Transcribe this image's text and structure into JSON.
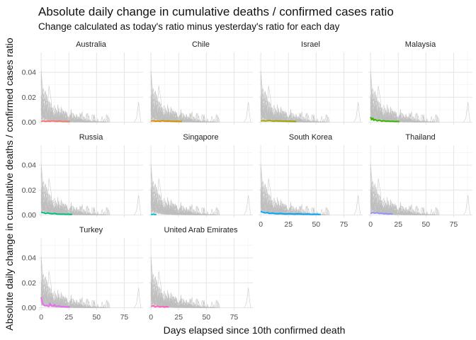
{
  "chart_data": {
    "type": "line",
    "title": "Absolute daily change in cumulative deaths / confirmed cases ratio",
    "subtitle": "Change calculated as today's ratio minus yesterday's ratio for each day",
    "xlabel": "Days elapsed since 10th confirmed death",
    "ylabel": "Absolute daily change in cumulative deaths / confirmed cases ratio",
    "xlim": [
      -2,
      92
    ],
    "ylim": [
      -0.002,
      0.056
    ],
    "x_ticks": [
      0,
      25,
      50,
      75
    ],
    "x_tick_labels": [
      "0",
      "25",
      "50",
      "75"
    ],
    "y_ticks": [
      0.0,
      0.02,
      0.04
    ],
    "y_tick_labels": [
      "0.00",
      "0.02",
      "0.04"
    ],
    "grid": true,
    "legend": "none",
    "background_series_color": "#bebebe",
    "background_series_description_hidden": true,
    "panels": [
      {
        "name": "Australia",
        "color": "#F8766D",
        "x": [
          0,
          2,
          4,
          6,
          8,
          10,
          12,
          14,
          16,
          18,
          20,
          22,
          24,
          26
        ],
        "y": [
          0.0008,
          0.001,
          0.0006,
          0.0009,
          0.0007,
          0.0011,
          0.0008,
          0.0006,
          0.0009,
          0.0007,
          0.0005,
          0.0006,
          0.0004,
          0.0005
        ]
      },
      {
        "name": "Chile",
        "color": "#D89000",
        "x": [
          0,
          2,
          4,
          6,
          8,
          10,
          12,
          14,
          16,
          18,
          20,
          22,
          24,
          26,
          28
        ],
        "y": [
          0.0009,
          0.0011,
          0.0008,
          0.001,
          0.0007,
          0.0012,
          0.0009,
          0.0008,
          0.001,
          0.0007,
          0.0008,
          0.0006,
          0.0007,
          0.0005,
          0.0006
        ]
      },
      {
        "name": "Israel",
        "color": "#A3A500",
        "x": [
          0,
          2,
          4,
          6,
          8,
          10,
          12,
          14,
          16,
          18,
          20,
          22,
          24,
          26,
          28,
          30,
          32
        ],
        "y": [
          0.001,
          0.0012,
          0.0009,
          0.0011,
          0.0013,
          0.001,
          0.0008,
          0.0011,
          0.0009,
          0.001,
          0.0008,
          0.0009,
          0.0007,
          0.0008,
          0.0006,
          0.0007,
          0.0005
        ]
      },
      {
        "name": "Malaysia",
        "color": "#39B600",
        "x": [
          0,
          1,
          2,
          3,
          4,
          6,
          8,
          10,
          12,
          14,
          16,
          18,
          20,
          22,
          24,
          26
        ],
        "y": [
          0.0042,
          0.002,
          0.0032,
          0.0014,
          0.0022,
          0.001,
          0.0016,
          0.0008,
          0.0012,
          0.0007,
          0.0009,
          0.0006,
          0.0008,
          0.0005,
          0.0006,
          0.0004
        ]
      },
      {
        "name": "Russia",
        "color": "#00BF7D",
        "x": [
          0,
          2,
          4,
          6,
          8,
          10,
          12,
          14,
          16,
          18,
          20,
          22,
          24,
          26,
          28
        ],
        "y": [
          0.0022,
          0.0018,
          0.0012,
          0.0016,
          0.0011,
          0.0009,
          0.0012,
          0.0008,
          0.0007,
          0.0006,
          0.0007,
          0.0005,
          0.0006,
          0.0004,
          0.0005
        ]
      },
      {
        "name": "Singapore",
        "color": "#00BFC4",
        "x": [
          0,
          1,
          2,
          3,
          4,
          5
        ],
        "y": [
          0.0006,
          0.0004,
          0.0007,
          0.0005,
          0.0004,
          0.0005
        ]
      },
      {
        "name": "South Korea",
        "color": "#00A9FF",
        "x": [
          0,
          2,
          4,
          6,
          8,
          10,
          14,
          18,
          22,
          26,
          30,
          34,
          38,
          42,
          46,
          50,
          54
        ],
        "y": [
          0.0028,
          0.0022,
          0.0016,
          0.0019,
          0.0012,
          0.0015,
          0.001,
          0.0012,
          0.0008,
          0.001,
          0.0007,
          0.0009,
          0.0006,
          0.0008,
          0.0005,
          0.0006,
          0.0004
        ]
      },
      {
        "name": "Thailand",
        "color": "#9590FF",
        "x": [
          0,
          2,
          4,
          6,
          8,
          10,
          12,
          14,
          16,
          18,
          20
        ],
        "y": [
          0.0012,
          0.002,
          0.0014,
          0.0018,
          0.0011,
          0.0015,
          0.0009,
          0.0012,
          0.0008,
          0.001,
          0.0007
        ]
      },
      {
        "name": "Turkey",
        "color": "#E76BF3",
        "x": [
          0,
          1,
          2,
          3,
          4,
          5,
          6,
          7,
          8,
          9,
          10,
          11,
          12,
          13,
          14,
          16,
          18,
          20,
          22,
          24,
          26
        ],
        "y": [
          0.0085,
          0.004,
          0.0025,
          0.0018,
          0.0015,
          0.002,
          0.0012,
          0.001,
          0.0035,
          0.0018,
          0.0015,
          0.0012,
          0.0025,
          0.0012,
          0.001,
          0.0014,
          0.0008,
          0.001,
          0.0007,
          0.0008,
          0.0006
        ]
      },
      {
        "name": "United Arab Emirates",
        "color": "#FF62BC",
        "x": [
          0,
          2,
          4,
          6,
          8,
          10,
          12,
          14,
          16
        ],
        "y": [
          0.001,
          0.0016,
          0.0007,
          0.0013,
          0.0006,
          0.0011,
          0.0005,
          0.0009,
          0.0006
        ]
      }
    ]
  }
}
